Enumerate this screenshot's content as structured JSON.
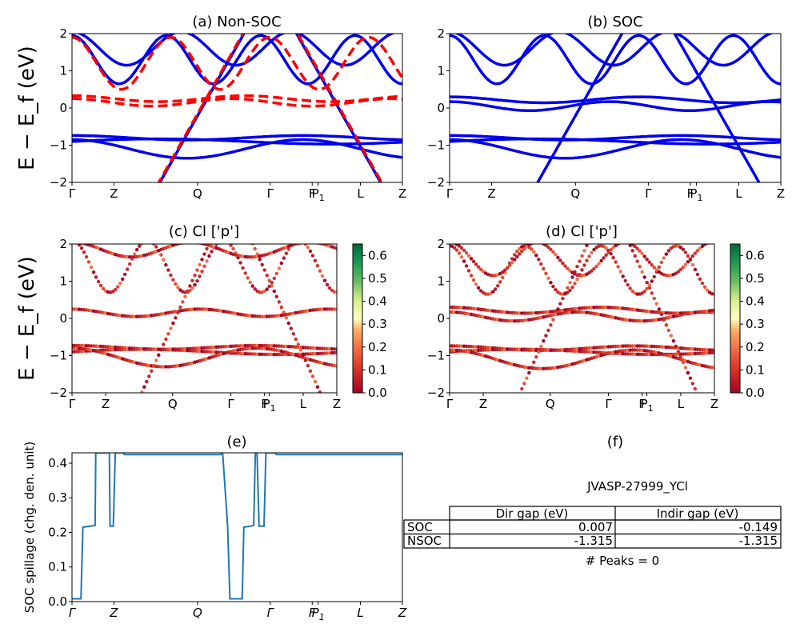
{
  "figure": {
    "ylabel_top": "E − E_f (eV)",
    "ylabel_mid": "E − E_f (eV)"
  },
  "panels": {
    "a": {
      "title": "(a) Non-SOC"
    },
    "b": {
      "title": "(b) SOC"
    },
    "c": {
      "title": "(c)  Cl ['p']"
    },
    "d": {
      "title": "(d) Cl ['p']"
    },
    "e": {
      "title": "(e)",
      "ylabel": "SOC spillage (chg. den. unit)"
    },
    "f": {
      "title": "(f)"
    }
  },
  "kpath_labels": [
    "Γ",
    "Z",
    "Q",
    "Γ",
    "F",
    "P1",
    "L",
    "Z"
  ],
  "band_yticks": [
    "2",
    "1",
    "0",
    "−1",
    "−2"
  ],
  "colorbar": {
    "ticks": [
      "0.0",
      "0.1",
      "0.2",
      "0.3",
      "0.4",
      "0.5",
      "0.6"
    ],
    "colormap": "RdYlGn",
    "range": [
      0,
      0.65
    ]
  },
  "colors": {
    "soc": "#0000ee",
    "nonsoc": "#ff0000",
    "spillage": "#1f77b4"
  },
  "chart_data": [
    {
      "id": "a",
      "type": "line",
      "title": "(a) Non-SOC",
      "ylim": [
        -2,
        2
      ],
      "yticks": [
        -2,
        -1,
        0,
        1,
        2
      ],
      "x_ticks": [
        "Γ",
        "Z",
        "Q",
        "Γ",
        "F",
        "P1",
        "L",
        "Z"
      ],
      "series": [
        {
          "name": "SOC",
          "style": "solid",
          "color": "#0000ee"
        },
        {
          "name": "Non-SOC",
          "style": "dashed",
          "color": "#ff0000"
        }
      ]
    },
    {
      "id": "b",
      "type": "line",
      "title": "(b) SOC",
      "ylim": [
        -2,
        2
      ],
      "yticks": [
        -2,
        -1,
        0,
        1,
        2
      ],
      "x_ticks": [
        "Γ",
        "Z",
        "Q",
        "Γ",
        "F",
        "P1",
        "L",
        "Z"
      ],
      "series": [
        {
          "name": "SOC",
          "style": "solid",
          "color": "#0000ee"
        }
      ]
    },
    {
      "id": "c",
      "type": "scatter",
      "title": "(c)  Cl ['p']",
      "ylim": [
        -2,
        2
      ],
      "colorbar_range": [
        0,
        0.65
      ],
      "x_ticks": [
        "Γ",
        "Z",
        "Q",
        "Γ",
        "F",
        "P1",
        "L",
        "Z"
      ]
    },
    {
      "id": "d",
      "type": "scatter",
      "title": "(d) Cl ['p']",
      "ylim": [
        -2,
        2
      ],
      "colorbar_range": [
        0,
        0.65
      ],
      "x_ticks": [
        "Γ",
        "Z",
        "Q",
        "Γ",
        "F",
        "P1",
        "L",
        "Z"
      ]
    },
    {
      "id": "e",
      "type": "line",
      "title": "(e)",
      "ylabel": "SOC spillage (chg. den. unit)",
      "ylim": [
        0,
        0.43
      ],
      "yticks": [
        0.0,
        0.1,
        0.2,
        0.3,
        0.4
      ],
      "x_ticks": [
        "Γ",
        "Z",
        "Q",
        "Γ",
        "F",
        "P1",
        "L",
        "Z"
      ],
      "x": [
        0,
        0.027,
        0.033,
        0.07,
        0.072,
        0.113,
        0.115,
        0.125,
        0.131,
        0.154,
        0.16,
        0.45,
        0.456,
        0.471,
        0.478,
        0.515,
        0.52,
        0.55,
        0.555,
        0.56,
        0.566,
        0.581,
        0.587,
        0.614,
        0.62,
        1.0
      ],
      "values": [
        0.008,
        0.008,
        0.215,
        0.22,
        0.43,
        0.43,
        0.218,
        0.218,
        0.43,
        0.43,
        0.425,
        0.425,
        0.43,
        0.22,
        0.008,
        0.008,
        0.215,
        0.22,
        0.43,
        0.43,
        0.218,
        0.218,
        0.43,
        0.43,
        0.425,
        0.425
      ]
    },
    {
      "id": "f",
      "type": "table",
      "title": "(f)",
      "caption": "JVASP-27999_YCl",
      "columns": [
        "Dir gap (eV)",
        "Indir gap (eV)"
      ],
      "rows": [
        {
          "label": "SOC",
          "dir": "0.007",
          "indir": "-0.149"
        },
        {
          "label": "NSOC",
          "dir": "-1.315",
          "indir": "-1.315"
        }
      ],
      "footer": "# Peaks = 0"
    }
  ]
}
